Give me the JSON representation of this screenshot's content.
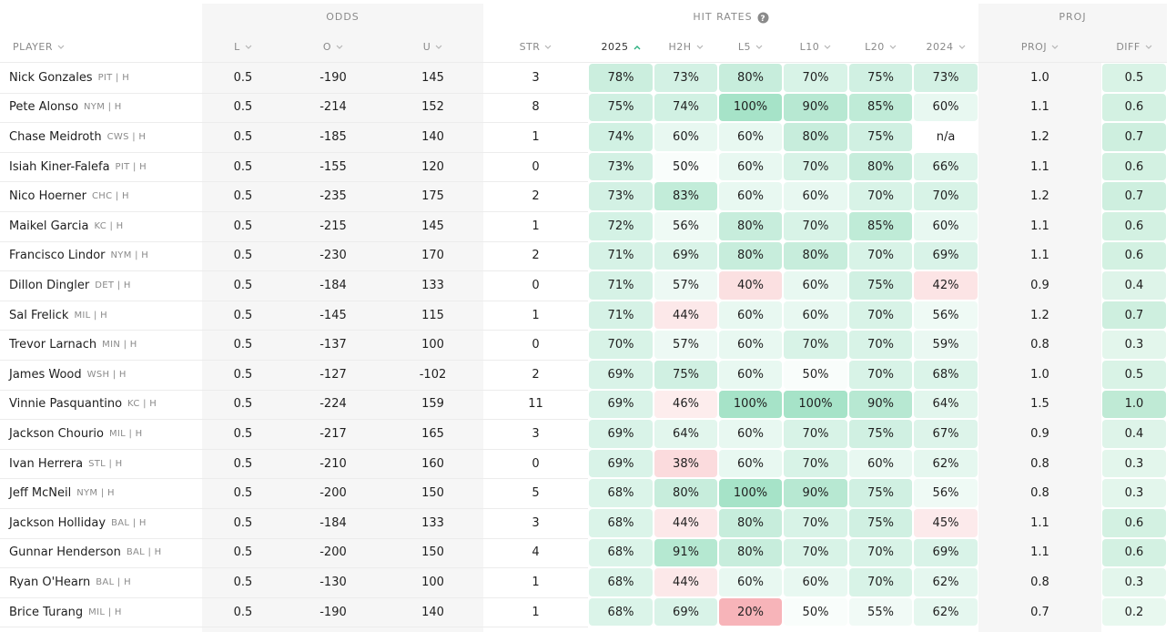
{
  "groups": [
    "ODDS",
    "HIT RATES",
    "PROJ"
  ],
  "columns": [
    "PLAYER",
    "L",
    "O",
    "U",
    "STR",
    "2025",
    "H2H",
    "L5",
    "L10",
    "L20",
    "2024",
    "PROJ",
    "DIFF"
  ],
  "rows": [
    {
      "player": "Nick Gonzales",
      "team": "PIT | H",
      "cells": [
        "0.5",
        "-190",
        "145",
        "3",
        "78%",
        "73%",
        "80%",
        "70%",
        "75%",
        "73%",
        "1.0",
        "0.5"
      ]
    },
    {
      "player": "Pete Alonso",
      "team": "NYM | H",
      "cells": [
        "0.5",
        "-214",
        "152",
        "8",
        "75%",
        "74%",
        "100%",
        "90%",
        "85%",
        "60%",
        "1.1",
        "0.6"
      ]
    },
    {
      "player": "Chase Meidroth",
      "team": "CWS | H",
      "cells": [
        "0.5",
        "-185",
        "140",
        "1",
        "74%",
        "60%",
        "60%",
        "80%",
        "75%",
        "n/a",
        "1.2",
        "0.7"
      ]
    },
    {
      "player": "Isiah Kiner-Falefa",
      "team": "PIT | H",
      "cells": [
        "0.5",
        "-155",
        "120",
        "0",
        "73%",
        "50%",
        "60%",
        "70%",
        "80%",
        "66%",
        "1.1",
        "0.6"
      ]
    },
    {
      "player": "Nico Hoerner",
      "team": "CHC | H",
      "cells": [
        "0.5",
        "-235",
        "175",
        "2",
        "73%",
        "83%",
        "60%",
        "60%",
        "70%",
        "70%",
        "1.2",
        "0.7"
      ]
    },
    {
      "player": "Maikel Garcia",
      "team": "KC | H",
      "cells": [
        "0.5",
        "-215",
        "145",
        "1",
        "72%",
        "56%",
        "80%",
        "70%",
        "85%",
        "60%",
        "1.1",
        "0.6"
      ]
    },
    {
      "player": "Francisco Lindor",
      "team": "NYM | H",
      "cells": [
        "0.5",
        "-230",
        "170",
        "2",
        "71%",
        "69%",
        "80%",
        "80%",
        "70%",
        "69%",
        "1.1",
        "0.6"
      ]
    },
    {
      "player": "Dillon Dingler",
      "team": "DET | H",
      "cells": [
        "0.5",
        "-184",
        "133",
        "0",
        "71%",
        "57%",
        "40%",
        "60%",
        "75%",
        "42%",
        "0.9",
        "0.4"
      ]
    },
    {
      "player": "Sal Frelick",
      "team": "MIL | H",
      "cells": [
        "0.5",
        "-145",
        "115",
        "1",
        "71%",
        "44%",
        "60%",
        "60%",
        "70%",
        "56%",
        "1.2",
        "0.7"
      ]
    },
    {
      "player": "Trevor Larnach",
      "team": "MIN | H",
      "cells": [
        "0.5",
        "-137",
        "100",
        "0",
        "70%",
        "57%",
        "60%",
        "70%",
        "70%",
        "59%",
        "0.8",
        "0.3"
      ]
    },
    {
      "player": "James Wood",
      "team": "WSH | H",
      "cells": [
        "0.5",
        "-127",
        "-102",
        "2",
        "69%",
        "75%",
        "60%",
        "50%",
        "70%",
        "68%",
        "1.0",
        "0.5"
      ]
    },
    {
      "player": "Vinnie Pasquantino",
      "team": "KC | H",
      "cells": [
        "0.5",
        "-224",
        "159",
        "11",
        "69%",
        "46%",
        "100%",
        "100%",
        "90%",
        "64%",
        "1.5",
        "1.0"
      ]
    },
    {
      "player": "Jackson Chourio",
      "team": "MIL | H",
      "cells": [
        "0.5",
        "-217",
        "165",
        "3",
        "69%",
        "64%",
        "60%",
        "70%",
        "75%",
        "67%",
        "0.9",
        "0.4"
      ]
    },
    {
      "player": "Ivan Herrera",
      "team": "STL | H",
      "cells": [
        "0.5",
        "-210",
        "160",
        "0",
        "69%",
        "38%",
        "60%",
        "70%",
        "60%",
        "62%",
        "0.8",
        "0.3"
      ]
    },
    {
      "player": "Jeff McNeil",
      "team": "NYM | H",
      "cells": [
        "0.5",
        "-200",
        "150",
        "5",
        "68%",
        "80%",
        "100%",
        "90%",
        "75%",
        "56%",
        "0.8",
        "0.3"
      ]
    },
    {
      "player": "Jackson Holliday",
      "team": "BAL | H",
      "cells": [
        "0.5",
        "-184",
        "133",
        "3",
        "68%",
        "44%",
        "80%",
        "70%",
        "75%",
        "45%",
        "1.1",
        "0.6"
      ]
    },
    {
      "player": "Gunnar Henderson",
      "team": "BAL | H",
      "cells": [
        "0.5",
        "-200",
        "150",
        "4",
        "68%",
        "91%",
        "80%",
        "70%",
        "70%",
        "69%",
        "1.1",
        "0.6"
      ]
    },
    {
      "player": "Ryan O'Hearn",
      "team": "BAL | H",
      "cells": [
        "0.5",
        "-130",
        "100",
        "1",
        "68%",
        "44%",
        "60%",
        "60%",
        "70%",
        "62%",
        "0.8",
        "0.3"
      ]
    },
    {
      "player": "Brice Turang",
      "team": "MIL | H",
      "cells": [
        "0.5",
        "-190",
        "140",
        "1",
        "68%",
        "69%",
        "20%",
        "50%",
        "55%",
        "62%",
        "0.7",
        "0.2"
      ]
    }
  ]
}
